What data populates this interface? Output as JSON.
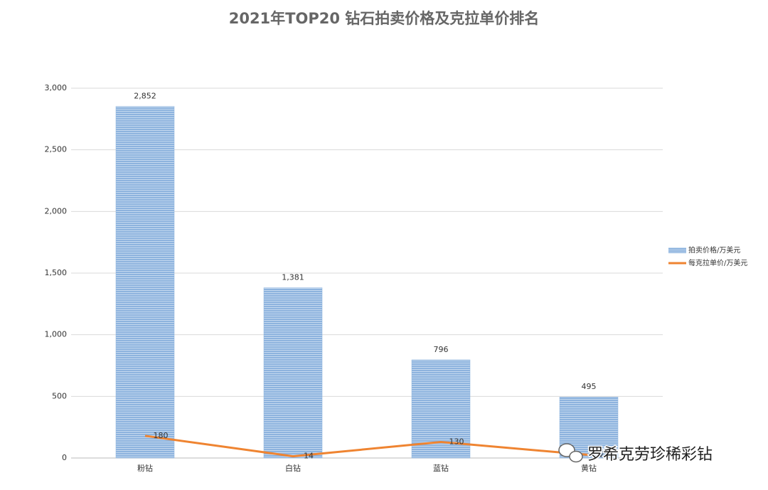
{
  "chart_data": {
    "type": "bar",
    "title": "2021年TOP20 钻石拍卖价格及克拉单价排名",
    "categories": [
      "粉钻",
      "白钻",
      "蓝钻",
      "黄钻"
    ],
    "series": [
      {
        "name": "拍卖价格/万美元",
        "type": "bar",
        "color": "#8db3de",
        "values": [
          2852,
          1381,
          796,
          495
        ],
        "value_labels": [
          "2,852",
          "1,381",
          "796",
          "495"
        ]
      },
      {
        "name": "每克拉单价/万美元",
        "type": "line",
        "color": "#ef8431",
        "values": [
          180,
          14,
          130,
          25
        ]
      }
    ],
    "ylim": [
      0,
      3000
    ],
    "yticks": [
      0,
      500,
      {
        "value": 1000,
        "label": "1,000"
      },
      {
        "value": 1500,
        "label": "1,500"
      },
      {
        "value": 2000,
        "label": "2,000"
      },
      {
        "value": 2500,
        "label": "2,500"
      },
      {
        "value": 3000,
        "label": "3,000"
      }
    ],
    "grid": true,
    "legend": "right"
  },
  "watermark": "罗希克劳珍稀彩钻"
}
